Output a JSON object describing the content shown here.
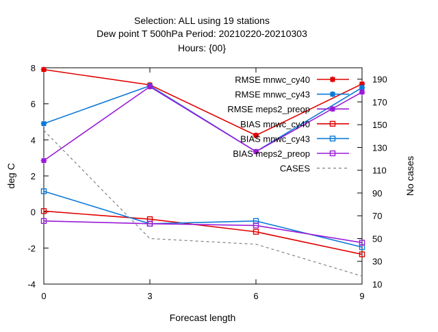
{
  "chart_data": {
    "type": "line",
    "title_lines": [
      "Selection: ALL using    19 stations",
      "Dew point T 500hPa   Period: 20210220-20210303",
      "Hours: {00}"
    ],
    "xlabel": "Forecast length",
    "ylabel": "deg C",
    "y2label": "No cases",
    "x": [
      0,
      3,
      6,
      9
    ],
    "xlim": [
      0,
      9
    ],
    "ylim": [
      -4,
      8
    ],
    "y2lim": [
      10,
      200
    ],
    "xticks": [
      0,
      3,
      6,
      9
    ],
    "yticks": [
      -4,
      -2,
      0,
      2,
      4,
      6,
      8
    ],
    "y2ticks": [
      10,
      30,
      50,
      70,
      90,
      110,
      130,
      150,
      170,
      190
    ],
    "grid": false,
    "legend_position": "top-right",
    "series": [
      {
        "name": "RMSE mnwc_cy40",
        "axis": "y1",
        "color": "#e00000",
        "marker": "filled-square",
        "values": [
          7.9,
          7.05,
          4.25,
          7.1
        ]
      },
      {
        "name": "RMSE mnwc_cy43",
        "axis": "y1",
        "color": "#0a78d8",
        "marker": "filled-square",
        "values": [
          4.9,
          7.0,
          3.35,
          6.9
        ]
      },
      {
        "name": "RMSE meps2_preop",
        "axis": "y1",
        "color": "#9a1ad8",
        "marker": "filled-square",
        "values": [
          2.85,
          6.95,
          3.35,
          6.65
        ]
      },
      {
        "name": "BIAS mnwc_cy40",
        "axis": "y1",
        "color": "#e00000",
        "marker": "open-square",
        "values": [
          0.05,
          -0.4,
          -1.1,
          -2.35
        ]
      },
      {
        "name": "BIAS mnwc_cy43",
        "axis": "y1",
        "color": "#0a78d8",
        "marker": "open-square",
        "values": [
          1.15,
          -0.65,
          -0.5,
          -1.95
        ]
      },
      {
        "name": "BIAS meps2_preop",
        "axis": "y1",
        "color": "#9a1ad8",
        "marker": "open-square",
        "values": [
          -0.5,
          -0.65,
          -0.75,
          -1.7
        ]
      },
      {
        "name": "CASES",
        "axis": "y2",
        "color": "#808080",
        "marker": "none",
        "dashed": true,
        "values": [
          145,
          50,
          45,
          17
        ]
      }
    ]
  }
}
